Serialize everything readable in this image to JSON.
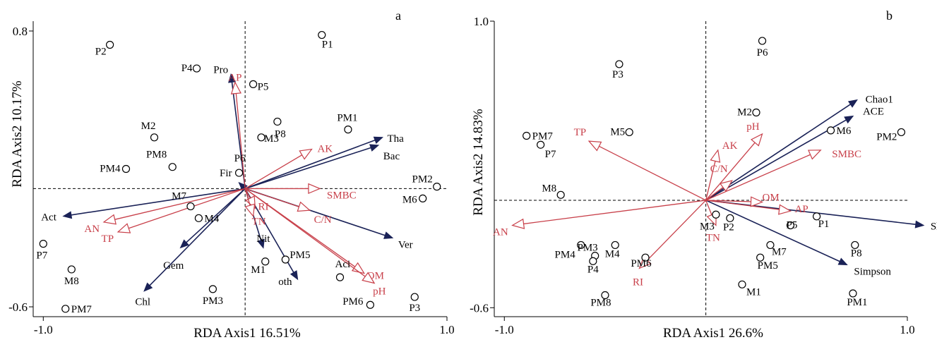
{
  "chart_data": [
    {
      "type": "scatter",
      "panel": "a",
      "xlabel": "RDA Axis1 16.51%",
      "ylabel": "RDA Axis2 10.17%",
      "xlim": [
        -1.05,
        1.0
      ],
      "ylim": [
        -0.65,
        0.85
      ],
      "xticks": [
        {
          "v": -1.0,
          "label": "-1.0"
        },
        {
          "v": 1.0,
          "label": "1.0"
        }
      ],
      "yticks": [
        {
          "v": 0.8,
          "label": "0.8"
        },
        {
          "v": -0.6,
          "label": "-0.6"
        }
      ],
      "sites": [
        {
          "name": "P1",
          "x": 0.38,
          "y": 0.78
        },
        {
          "name": "P2",
          "x": -0.67,
          "y": 0.73
        },
        {
          "name": "P4",
          "x": -0.24,
          "y": 0.61
        },
        {
          "name": "P5",
          "x": 0.04,
          "y": 0.53
        },
        {
          "name": "P8",
          "x": 0.16,
          "y": 0.34
        },
        {
          "name": "PM1",
          "x": 0.51,
          "y": 0.3
        },
        {
          "name": "M3",
          "x": 0.08,
          "y": 0.26
        },
        {
          "name": "M2",
          "x": -0.45,
          "y": 0.26
        },
        {
          "name": "PM8",
          "x": -0.36,
          "y": 0.11
        },
        {
          "name": "PM4",
          "x": -0.59,
          "y": 0.1
        },
        {
          "name": "P6",
          "x": -0.03,
          "y": 0.08
        },
        {
          "name": "PM2",
          "x": 0.95,
          "y": 0.01
        },
        {
          "name": "M6",
          "x": 0.88,
          "y": -0.05
        },
        {
          "name": "M7",
          "x": -0.27,
          "y": -0.09
        },
        {
          "name": "M4",
          "x": -0.23,
          "y": -0.15
        },
        {
          "name": "P7",
          "x": -1.0,
          "y": -0.28
        },
        {
          "name": "PM5",
          "x": 0.2,
          "y": -0.36
        },
        {
          "name": "M1",
          "x": 0.1,
          "y": -0.37
        },
        {
          "name": "Aci",
          "x": 0.47,
          "y": -0.45
        },
        {
          "name": "PM3",
          "x": -0.16,
          "y": -0.51
        },
        {
          "name": "M8",
          "x": -0.86,
          "y": -0.41
        },
        {
          "name": "PM7",
          "x": -0.89,
          "y": -0.61
        },
        {
          "name": "PM6",
          "x": 0.62,
          "y": -0.59
        },
        {
          "name": "P3",
          "x": 0.84,
          "y": -0.55
        }
      ],
      "species_vectors": [
        {
          "name": "Pro",
          "x": -0.07,
          "y": 0.58
        },
        {
          "name": "Tha",
          "x": 0.68,
          "y": 0.26
        },
        {
          "name": "Bac",
          "x": 0.66,
          "y": 0.22
        },
        {
          "name": "Act",
          "x": -0.9,
          "y": -0.14
        },
        {
          "name": "Ver",
          "x": 0.73,
          "y": -0.25
        },
        {
          "name": "Chl",
          "x": -0.5,
          "y": -0.52
        },
        {
          "name": "Gem",
          "x": -0.32,
          "y": -0.3
        },
        {
          "name": "Nit",
          "x": 0.09,
          "y": -0.3
        },
        {
          "name": "oth",
          "x": 0.26,
          "y": -0.46
        },
        {
          "name": "Fir",
          "x": -0.03,
          "y": 0.03
        }
      ],
      "env_vectors": [
        {
          "name": "AP",
          "x": -0.05,
          "y": 0.54
        },
        {
          "name": "AK",
          "x": 0.33,
          "y": 0.2
        },
        {
          "name": "SMBC",
          "x": 0.37,
          "y": 0.0
        },
        {
          "name": "AN",
          "x": -0.7,
          "y": -0.17
        },
        {
          "name": "TP",
          "x": -0.63,
          "y": -0.22
        },
        {
          "name": "C/N",
          "x": 0.32,
          "y": -0.11
        },
        {
          "name": "RI",
          "x": 0.05,
          "y": -0.1
        },
        {
          "name": "TN",
          "x": 0.04,
          "y": -0.14
        },
        {
          "name": "OM",
          "x": 0.59,
          "y": -0.43
        },
        {
          "name": "pH",
          "x": 0.64,
          "y": -0.48
        }
      ]
    },
    {
      "type": "scatter",
      "panel": "b",
      "xlabel": "RDA  Axis1 26.6%",
      "ylabel": "RDA Axis2 14.83%",
      "xlim": [
        -1.05,
        1.0
      ],
      "ylim": [
        -0.65,
        1.0
      ],
      "xticks": [
        {
          "v": -1.0,
          "label": "-1.0"
        },
        {
          "v": 1.0,
          "label": "1.0"
        }
      ],
      "yticks": [
        {
          "v": 1.0,
          "label": "1.0"
        },
        {
          "v": -0.6,
          "label": "-0.6"
        }
      ],
      "sites": [
        {
          "name": "P6",
          "x": 0.28,
          "y": 0.89
        },
        {
          "name": "P3",
          "x": -0.43,
          "y": 0.76
        },
        {
          "name": "M2",
          "x": 0.25,
          "y": 0.49
        },
        {
          "name": "M5",
          "x": -0.38,
          "y": 0.38
        },
        {
          "name": "M6",
          "x": 0.62,
          "y": 0.39
        },
        {
          "name": "PM2",
          "x": 0.97,
          "y": 0.38
        },
        {
          "name": "PM7",
          "x": -0.89,
          "y": 0.36
        },
        {
          "name": "P7",
          "x": -0.82,
          "y": 0.31
        },
        {
          "name": "M8",
          "x": -0.72,
          "y": 0.03
        },
        {
          "name": "M3",
          "x": 0.05,
          "y": -0.08
        },
        {
          "name": "P2",
          "x": 0.12,
          "y": -0.1
        },
        {
          "name": "P5",
          "x": 0.42,
          "y": -0.14
        },
        {
          "name": "P1",
          "x": 0.55,
          "y": -0.09
        },
        {
          "name": "PM4",
          "x": -0.62,
          "y": -0.25
        },
        {
          "name": "M4",
          "x": -0.45,
          "y": -0.25
        },
        {
          "name": "M7",
          "x": 0.32,
          "y": -0.25
        },
        {
          "name": "P8",
          "x": 0.74,
          "y": -0.25
        },
        {
          "name": "PM5",
          "x": 0.27,
          "y": -0.32
        },
        {
          "name": "PM3",
          "x": -0.55,
          "y": -0.31
        },
        {
          "name": "P4",
          "x": -0.56,
          "y": -0.34
        },
        {
          "name": "PM6",
          "x": -0.3,
          "y": -0.32
        },
        {
          "name": "M1",
          "x": 0.18,
          "y": -0.47
        },
        {
          "name": "PM1",
          "x": 0.73,
          "y": -0.52
        },
        {
          "name": "PM8",
          "x": -0.5,
          "y": -0.53
        }
      ],
      "species_vectors": [
        {
          "name": "Chao1",
          "x": 0.75,
          "y": 0.56
        },
        {
          "name": "ACE",
          "x": 0.73,
          "y": 0.47
        },
        {
          "name": "Shannon",
          "x": 1.08,
          "y": -0.14
        },
        {
          "name": "Simpson",
          "x": 0.7,
          "y": -0.36
        }
      ],
      "env_vectors": [
        {
          "name": "TP",
          "x": -0.58,
          "y": 0.33
        },
        {
          "name": "pH",
          "x": 0.28,
          "y": 0.37
        },
        {
          "name": "AK",
          "x": 0.06,
          "y": 0.28
        },
        {
          "name": "SMBC",
          "x": 0.57,
          "y": 0.28
        },
        {
          "name": "C/N",
          "x": 0.13,
          "y": 0.11
        },
        {
          "name": "OM",
          "x": 0.28,
          "y": -0.01
        },
        {
          "name": "AP",
          "x": 0.42,
          "y": -0.06
        },
        {
          "name": "AN",
          "x": -0.96,
          "y": -0.14
        },
        {
          "name": "TN",
          "x": 0.05,
          "y": -0.14
        },
        {
          "name": "RI",
          "x": -0.33,
          "y": -0.38
        }
      ]
    }
  ]
}
